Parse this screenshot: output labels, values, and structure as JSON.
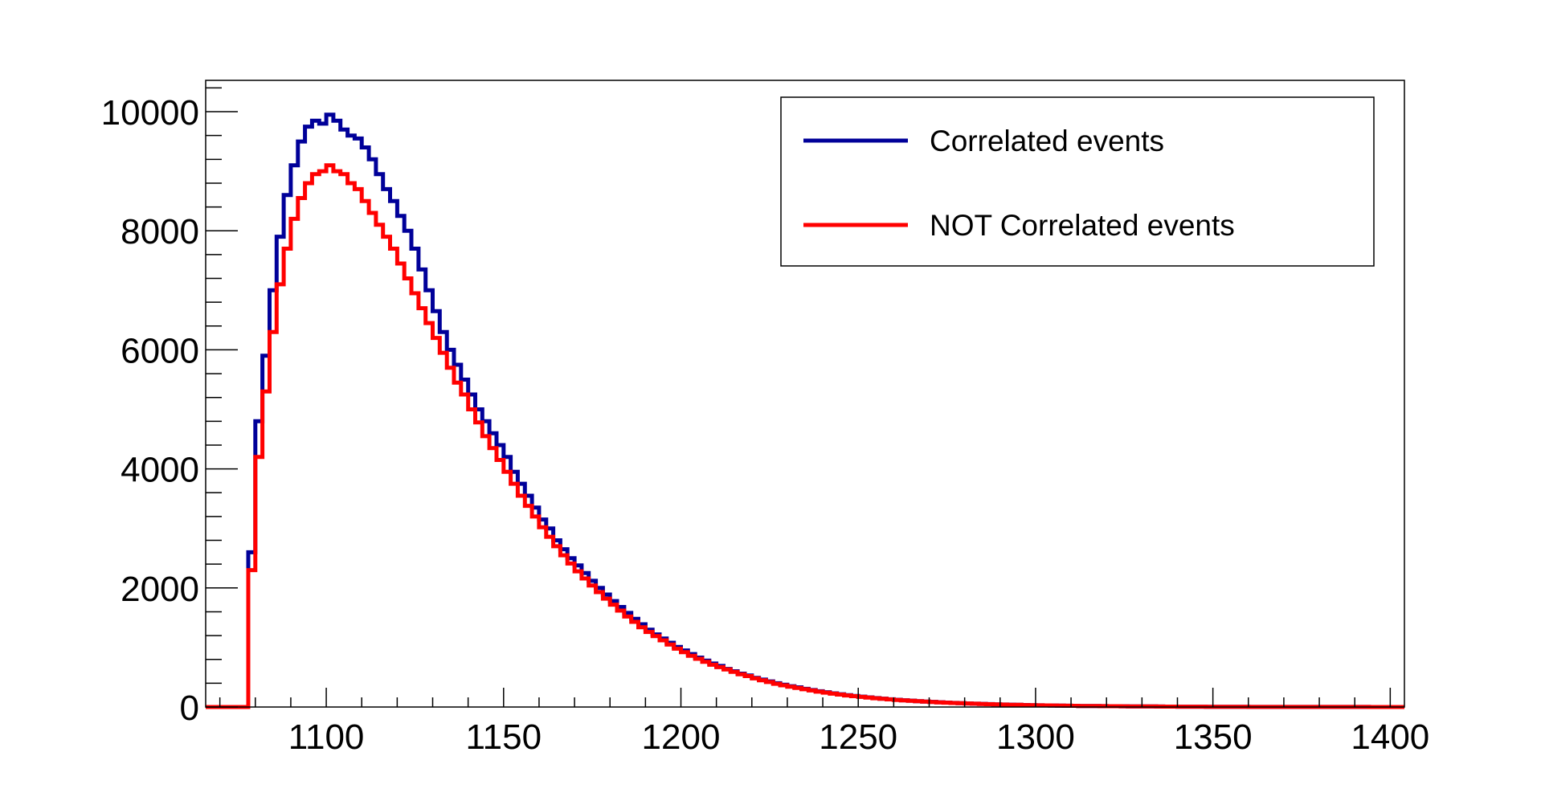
{
  "chart_data": {
    "type": "line",
    "title": "",
    "xlabel": "",
    "ylabel": "",
    "xlim": [
      1066,
      1404
    ],
    "ylim": [
      0,
      10500
    ],
    "x_ticks": [
      1100,
      1150,
      1200,
      1250,
      1300,
      1350,
      1400
    ],
    "y_ticks": [
      0,
      2000,
      4000,
      6000,
      8000,
      10000
    ],
    "grid": false,
    "legend_position": "top-right",
    "bin_width": 2,
    "x_start": 1066,
    "series": [
      {
        "name": "Correlated events",
        "color": "#000099",
        "values": [
          0,
          0,
          0,
          0,
          0,
          0,
          2600,
          4800,
          5900,
          7000,
          7900,
          8600,
          9100,
          9500,
          9750,
          9850,
          9800,
          9950,
          9850,
          9700,
          9600,
          9550,
          9400,
          9200,
          8950,
          8700,
          8500,
          8250,
          8000,
          7700,
          7350,
          7000,
          6650,
          6300,
          6000,
          5750,
          5500,
          5250,
          5000,
          4800,
          4600,
          4400,
          4200,
          3950,
          3750,
          3550,
          3350,
          3150,
          3000,
          2800,
          2650,
          2500,
          2380,
          2250,
          2120,
          2000,
          1890,
          1780,
          1680,
          1580,
          1480,
          1390,
          1300,
          1220,
          1150,
          1080,
          1010,
          950,
          890,
          830,
          780,
          730,
          690,
          640,
          600,
          560,
          530,
          490,
          460,
          430,
          400,
          375,
          350,
          330,
          305,
          285,
          265,
          248,
          230,
          215,
          200,
          186,
          174,
          162,
          150,
          140,
          130,
          122,
          114,
          106,
          99,
          92,
          86,
          80,
          74,
          69,
          64,
          60,
          56,
          52,
          48,
          45,
          42,
          39,
          36,
          34,
          31,
          29,
          27,
          25,
          23,
          21,
          20,
          18,
          17,
          16,
          15,
          14,
          13,
          12,
          11,
          10,
          9,
          9,
          8,
          7,
          7,
          6,
          6,
          5,
          5,
          4,
          4,
          4,
          3,
          3,
          3,
          2,
          2,
          2,
          2,
          2,
          1,
          1,
          1,
          1,
          1,
          1,
          1,
          1,
          1,
          1,
          1,
          1,
          0,
          0,
          0,
          0,
          0,
          0,
          0
        ]
      },
      {
        "name": "NOT Correlated events",
        "color": "#ff0000",
        "values": [
          0,
          0,
          0,
          0,
          0,
          0,
          2300,
          4200,
          5300,
          6300,
          7100,
          7700,
          8200,
          8550,
          8800,
          8950,
          9000,
          9100,
          9000,
          8950,
          8800,
          8700,
          8500,
          8300,
          8100,
          7900,
          7700,
          7450,
          7200,
          6950,
          6700,
          6450,
          6200,
          5950,
          5700,
          5450,
          5250,
          5000,
          4780,
          4550,
          4350,
          4150,
          3950,
          3750,
          3550,
          3380,
          3200,
          3020,
          2860,
          2700,
          2550,
          2410,
          2280,
          2160,
          2040,
          1930,
          1820,
          1720,
          1620,
          1520,
          1430,
          1340,
          1260,
          1190,
          1120,
          1050,
          980,
          920,
          860,
          810,
          760,
          710,
          670,
          630,
          590,
          550,
          520,
          480,
          450,
          420,
          390,
          365,
          340,
          320,
          298,
          278,
          258,
          241,
          224,
          209,
          195,
          182,
          170,
          158,
          147,
          137,
          128,
          119,
          111,
          104,
          97,
          90,
          84,
          78,
          73,
          68,
          63,
          59,
          55,
          51,
          47,
          44,
          41,
          38,
          36,
          33,
          31,
          29,
          27,
          25,
          23,
          21,
          20,
          18,
          17,
          16,
          15,
          14,
          13,
          12,
          11,
          10,
          9,
          9,
          8,
          7,
          7,
          6,
          6,
          5,
          5,
          4,
          4,
          4,
          3,
          3,
          3,
          2,
          2,
          2,
          2,
          2,
          1,
          1,
          1,
          1,
          1,
          1,
          1,
          1,
          1,
          1,
          1,
          1,
          0,
          0,
          0,
          0,
          0,
          0,
          0
        ]
      }
    ]
  },
  "legend": {
    "entries": [
      "Correlated events",
      "NOT Correlated events"
    ]
  }
}
